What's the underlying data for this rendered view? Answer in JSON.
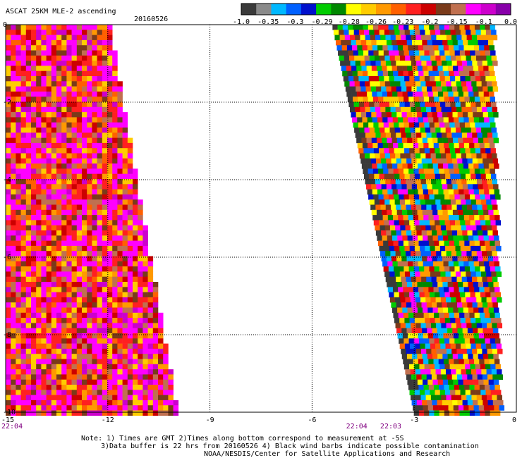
{
  "header": {
    "title": "ASCAT 25KM MLE-2 ascending",
    "date": "20160526"
  },
  "colorbar": {
    "colors": [
      "#3a3a3a",
      "#8a8a8a",
      "#00b8ff",
      "#0060ff",
      "#0010cc",
      "#00cc00",
      "#008800",
      "#ffff00",
      "#ffcc00",
      "#ff9900",
      "#ff6000",
      "#ff2020",
      "#cc0000",
      "#7a3a1a",
      "#c07050",
      "#ff00ff",
      "#cc00cc",
      "#8800aa"
    ],
    "tick_labels": [
      "-1.0",
      "-0.35",
      "-0.3",
      "-0.29",
      "-0.28",
      "-0.26",
      "-0.23",
      "-0.2",
      "-0.15",
      "-0.1",
      "0.0"
    ]
  },
  "chart_data": {
    "type": "heatmap",
    "title": "ASCAT 25KM MLE-2 ascending",
    "xlim": [
      -15,
      0
    ],
    "ylim": [
      -10,
      0
    ],
    "x_ticks": [
      "-15",
      "-12",
      "-9",
      "-6",
      "-3",
      "0"
    ],
    "y_ticks": [
      "0",
      "-2",
      "-4",
      "-6",
      "-8",
      "-10"
    ],
    "grid": true,
    "colorscale_values": [
      -1.0,
      -0.35,
      -0.3,
      -0.29,
      -0.28,
      -0.26,
      -0.23,
      -0.2,
      -0.15,
      -0.1,
      0.0
    ],
    "swaths": [
      {
        "name": "west",
        "x_left_at_top": -15.0,
        "x_right_at_top": -12.0,
        "x_right_at_bottom": -10.0
      },
      {
        "name": "east",
        "x_left_at_top": -5.4,
        "x_right_at_top": -0.5,
        "x_left_at_bottom": -3.0
      }
    ],
    "time_labels": [
      {
        "x": -15,
        "text": "22:04"
      },
      {
        "x": -5,
        "text": "22:04"
      },
      {
        "x": -4,
        "text": "22:03"
      }
    ]
  },
  "footer": {
    "line1": "Note: 1) Times are GMT 2)Times along bottom correspond to measurement at -5S",
    "line2": "3)Data buffer is 22 hrs from 20160526 4) Black wind barbs indicate possible contamination",
    "line3": "NOAA/NESDIS/Center for Satellite Applications and Research"
  }
}
